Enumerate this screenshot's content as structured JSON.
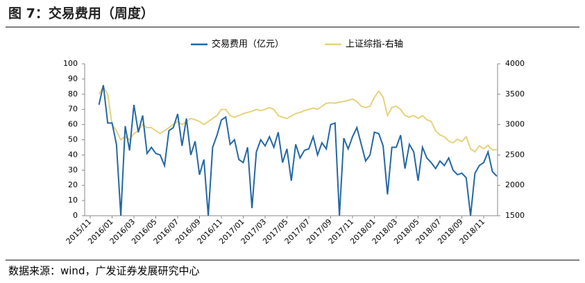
{
  "chart_data": {
    "type": "line",
    "title": "图 7：交易费用（周度）",
    "source": "数据来源：wind，广发证券发展研究中心",
    "categories": [
      "2015/11",
      null,
      null,
      null,
      null,
      "2016/01",
      null,
      null,
      null,
      null,
      "2016/03",
      null,
      null,
      null,
      null,
      "2016/05",
      null,
      null,
      null,
      null,
      "2016/07",
      null,
      null,
      null,
      null,
      "2016/09",
      null,
      null,
      null,
      null,
      "2016/11",
      null,
      null,
      null,
      null,
      "2017/01",
      null,
      null,
      null,
      null,
      "2017/03",
      null,
      null,
      null,
      null,
      "2017/05",
      null,
      null,
      null,
      null,
      "2017/07",
      null,
      null,
      null,
      null,
      "2017/09",
      null,
      null,
      null,
      null,
      "2017/11",
      null,
      null,
      null,
      null,
      "2018/01",
      null,
      null,
      null,
      null,
      "2018/03",
      null,
      null,
      null,
      null,
      "2018/05",
      null,
      null,
      null,
      null,
      "2018/07",
      null,
      null,
      null,
      null,
      "2018/09",
      null,
      null,
      null,
      null,
      "2018/11",
      null,
      null,
      null
    ],
    "series": [
      {
        "name": "交易费用（亿元）",
        "color": "#2467a4",
        "axis": "y",
        "values": [
          null,
          null,
          73,
          86,
          61,
          61,
          47,
          0,
          59,
          43,
          73,
          55,
          66,
          41,
          45,
          41,
          40,
          33,
          56,
          58,
          67,
          46,
          64,
          40,
          49,
          27,
          37,
          0,
          45,
          53,
          63,
          65,
          47,
          50,
          37,
          35,
          45,
          5,
          42,
          50,
          46,
          52,
          45,
          55,
          35,
          44,
          23,
          47,
          38,
          43,
          44,
          52,
          40,
          48,
          44,
          60,
          61,
          0,
          51,
          44,
          52,
          58,
          47,
          36,
          40,
          55,
          54,
          46,
          14,
          45,
          45,
          53,
          31,
          47,
          42,
          23,
          45,
          38,
          35,
          31,
          36,
          33,
          38,
          30,
          27,
          28,
          25,
          0,
          28,
          33,
          35,
          42,
          29,
          26
        ]
      },
      {
        "name": "上证综指-右轴",
        "color": "#e6d27c",
        "axis": "y2",
        "values": [
          null,
          null,
          3500,
          3620,
          3500,
          3000,
          2900,
          2750,
          2800,
          2750,
          2850,
          2900,
          3000,
          2950,
          2950,
          2900,
          2850,
          2900,
          2950,
          3000,
          3050,
          3000,
          3050,
          3100,
          3080,
          3050,
          3000,
          3050,
          3100,
          3150,
          3250,
          3250,
          3150,
          3120,
          3150,
          3180,
          3200,
          3220,
          3250,
          3230,
          3250,
          3280,
          3250,
          3150,
          3120,
          3100,
          3140,
          3180,
          3200,
          3230,
          3250,
          3270,
          3250,
          3300,
          3350,
          3360,
          3350,
          3370,
          3380,
          3400,
          3420,
          3380,
          3300,
          3280,
          3300,
          3450,
          3550,
          3450,
          3150,
          3280,
          3300,
          3250,
          3150,
          3120,
          3150,
          3100,
          3150,
          3080,
          3050,
          2900,
          2830,
          2800,
          2730,
          2700,
          2760,
          2720,
          2800,
          2600,
          2550,
          2650,
          2600,
          2660,
          2580,
          2590
        ]
      }
    ],
    "ylim": [
      0,
      100
    ],
    "yticks": [
      0,
      10,
      20,
      30,
      40,
      50,
      60,
      70,
      80,
      90,
      100
    ],
    "y2lim": [
      1500,
      4000
    ],
    "y2ticks": [
      1500,
      2000,
      2500,
      3000,
      3500,
      4000
    ]
  }
}
